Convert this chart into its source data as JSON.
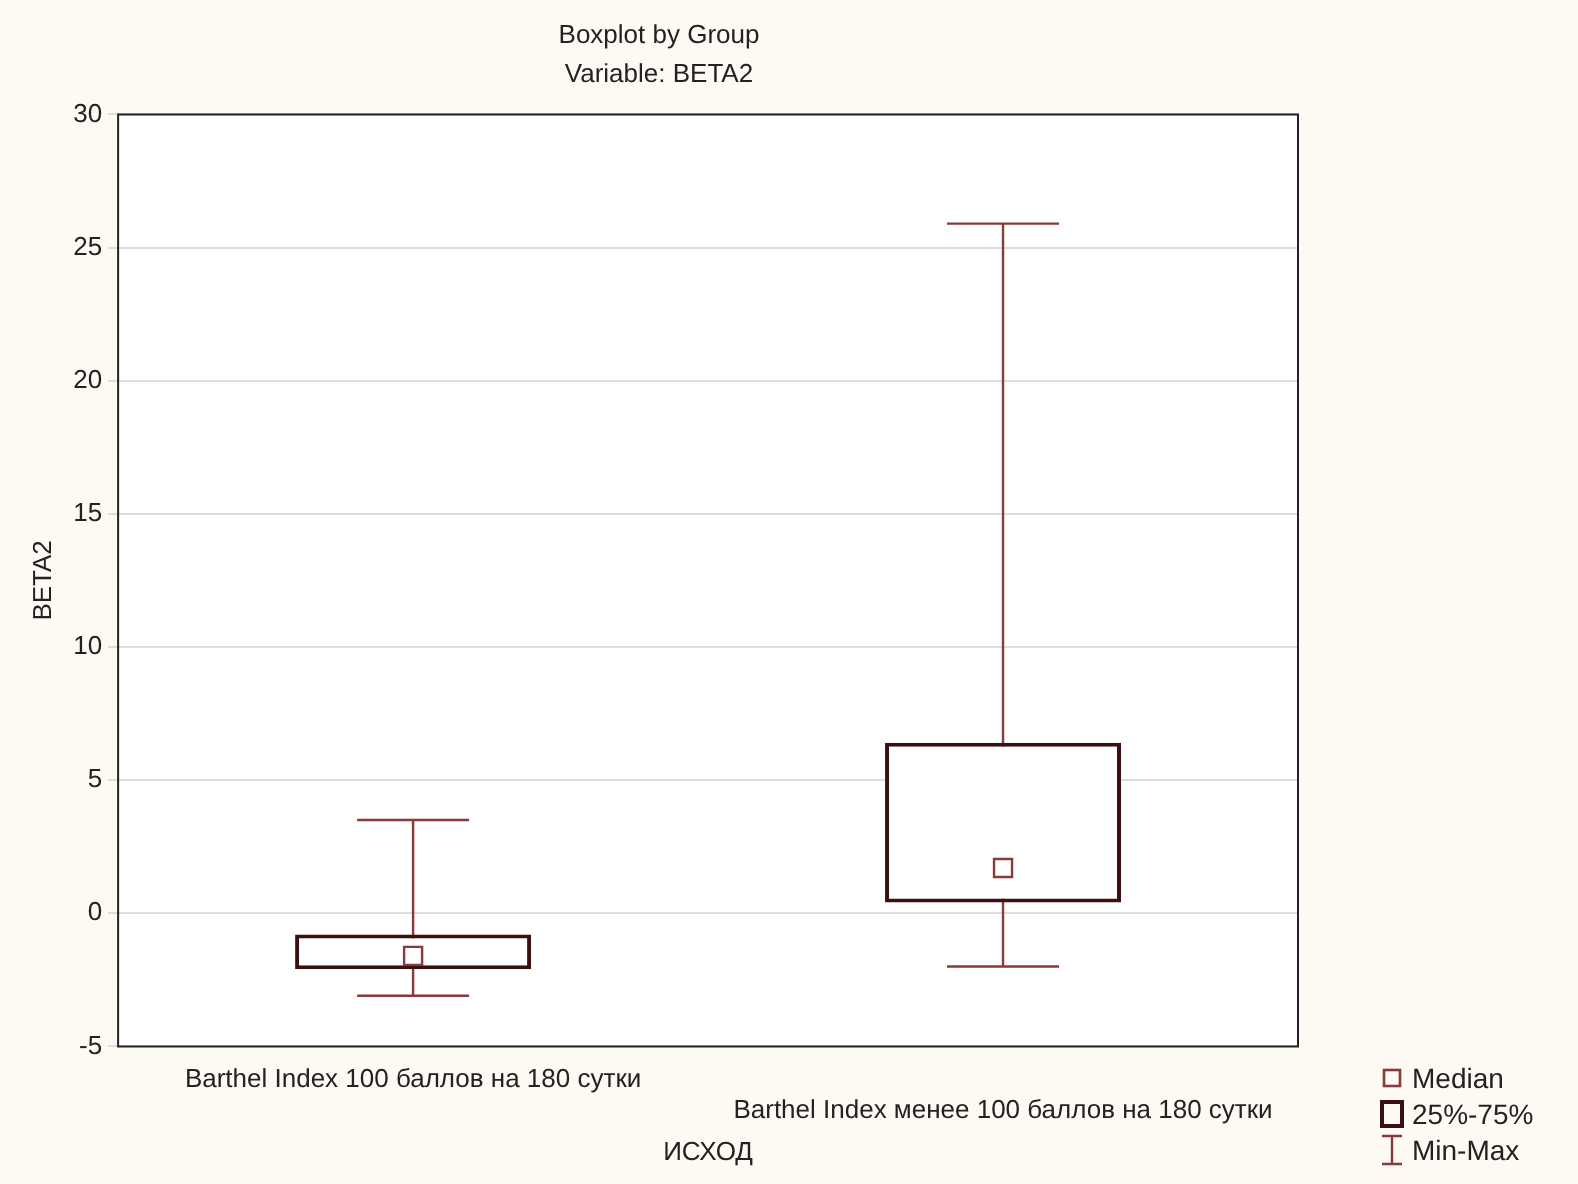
{
  "chart_data": {
    "type": "box",
    "title": "Boxplot by Group",
    "subtitle": "Variable: BETA2",
    "xlabel": "ИСХОД",
    "ylabel": "BETA2",
    "categories": [
      "Barthel Index 100 баллов на 180 сутки",
      "Barthel Index менее 100 баллов на 180 сутки"
    ],
    "boxes": [
      {
        "low": -3.1,
        "q1": -2.1,
        "median": -1.6,
        "q3": -0.8,
        "high": 3.5
      },
      {
        "low": -2.0,
        "q1": 0.4,
        "median": 1.7,
        "q3": 6.4,
        "high": 25.9
      }
    ],
    "color": "#3a1010",
    "ylim": [
      -5,
      30
    ],
    "yticks": [
      -5,
      0,
      5,
      10,
      15,
      20,
      25,
      30
    ],
    "grid": "y",
    "annotations": [
      "Median",
      "25%-75%",
      "Min-Max"
    ]
  }
}
